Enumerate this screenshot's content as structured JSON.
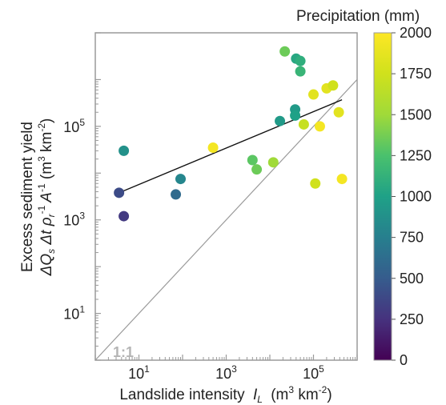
{
  "chart_data": {
    "type": "scatter",
    "xscale": "log",
    "yscale": "log",
    "xlim": [
      1,
      1000000
    ],
    "ylim": [
      1,
      10000000
    ],
    "xlabel": "Landslide intensity",
    "xlabel_symbol": "I",
    "xlabel_sub": "L",
    "xlabel_units": "(m",
    "xlabel_units_sup": "3",
    "xlabel_units_mid": " km",
    "xlabel_units_sup2": "-2",
    "xlabel_units_end": ")",
    "ylabel_line1": "Excess sediment yield",
    "ylabel_line2": {
      "p1": "ΔQ",
      "p1_sub": "s",
      "p2": " Δt ρ",
      "p2_sub": "r",
      "p3": "A",
      "p3_sup": "-1",
      "p4": " (m",
      "p4_sup": "3",
      "p5": " km",
      "p5_sup": "-2",
      "p6": ")"
    },
    "rho_sup": "-1",
    "x_ticks": [
      {
        "value": 10,
        "base": "10",
        "exp": "1"
      },
      {
        "value": 1000,
        "base": "10",
        "exp": "3"
      },
      {
        "value": 100000,
        "base": "10",
        "exp": "5"
      }
    ],
    "y_ticks": [
      {
        "value": 10,
        "base": "10",
        "exp": "1"
      },
      {
        "value": 1000,
        "base": "10",
        "exp": "3"
      },
      {
        "value": 100000,
        "base": "10",
        "exp": "5"
      }
    ],
    "one_to_one_label": "1:1",
    "fit_line": {
      "x": [
        3.5,
        450000
      ],
      "y": [
        3800,
        370000
      ]
    },
    "colorbar": {
      "label": "Precipitation (mm)",
      "min": 0,
      "max": 2000,
      "ticks": [
        "0",
        "250",
        "500",
        "750",
        "1000",
        "1250",
        "1500",
        "1750",
        "2000"
      ],
      "colormap": "viridis"
    },
    "points": [
      {
        "x": 3.5,
        "y": 3800,
        "precip": 400
      },
      {
        "x": 4.5,
        "y": 1200,
        "precip": 300
      },
      {
        "x": 4.5,
        "y": 30000,
        "precip": 880
      },
      {
        "x": 70,
        "y": 3500,
        "precip": 600
      },
      {
        "x": 90,
        "y": 7500,
        "precip": 800
      },
      {
        "x": 500,
        "y": 35000,
        "precip": 1950
      },
      {
        "x": 4000,
        "y": 19000,
        "precip": 1300
      },
      {
        "x": 5000,
        "y": 12000,
        "precip": 1350
      },
      {
        "x": 12000,
        "y": 17000,
        "precip": 1500
      },
      {
        "x": 17000,
        "y": 130000,
        "precip": 950
      },
      {
        "x": 22000,
        "y": 4000000,
        "precip": 1350
      },
      {
        "x": 38000,
        "y": 230000,
        "precip": 950
      },
      {
        "x": 38000,
        "y": 170000,
        "precip": 1000
      },
      {
        "x": 40000,
        "y": 2800000,
        "precip": 1050
      },
      {
        "x": 50000,
        "y": 2500000,
        "precip": 1100
      },
      {
        "x": 50000,
        "y": 1500000,
        "precip": 1150
      },
      {
        "x": 60000,
        "y": 110000,
        "precip": 1700
      },
      {
        "x": 100000,
        "y": 480000,
        "precip": 1850
      },
      {
        "x": 110000,
        "y": 6000,
        "precip": 1750
      },
      {
        "x": 140000,
        "y": 100000,
        "precip": 1950
      },
      {
        "x": 200000,
        "y": 650000,
        "precip": 1850
      },
      {
        "x": 280000,
        "y": 750000,
        "precip": 1750
      },
      {
        "x": 380000,
        "y": 200000,
        "precip": 1850
      },
      {
        "x": 450000,
        "y": 7500,
        "precip": 1950
      }
    ]
  }
}
